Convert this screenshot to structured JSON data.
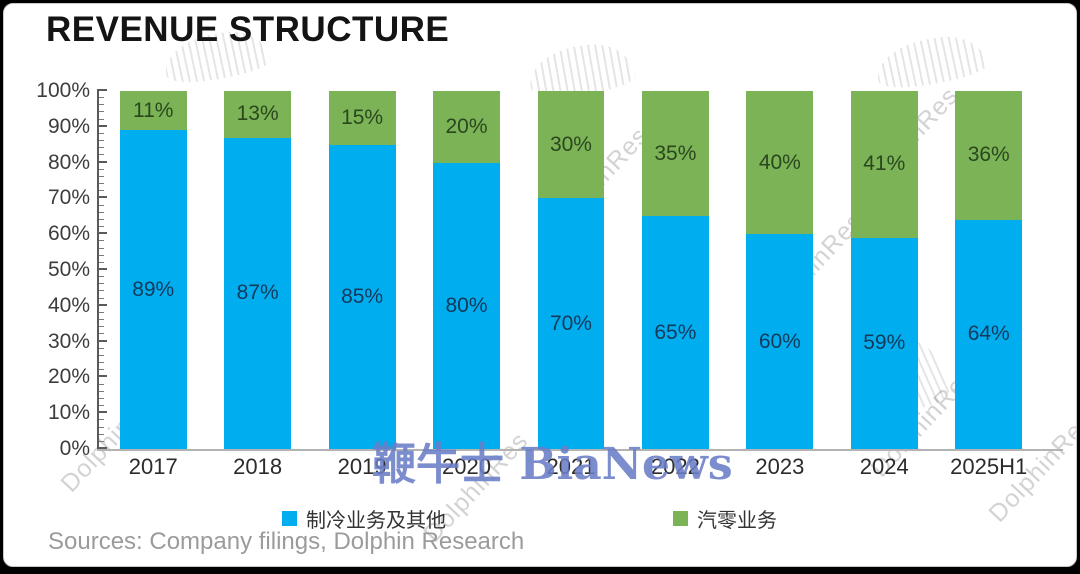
{
  "title": "REVENUE STRUCTURE",
  "source_note": "Sources: Company filings, Dolphin Research",
  "watermarks": {
    "center_text": "鞭牛士 BiaNews",
    "center_color": "#6a7dc6",
    "diagonal_text": "DolphinRes",
    "diagonal_text_full": "Dolphin Research"
  },
  "legend": {
    "items": [
      {
        "label": "制冷业务及其他",
        "color": "#00AEEF"
      },
      {
        "label": "汽零业务",
        "color": "#7CB357"
      }
    ]
  },
  "chart_data": {
    "type": "bar",
    "stacked": true,
    "title": "REVENUE STRUCTURE",
    "xlabel": "",
    "ylabel": "",
    "ylim": [
      0,
      100
    ],
    "grid": false,
    "legend_position": "bottom",
    "value_suffix": "%",
    "categories": [
      "2017",
      "2018",
      "2019",
      "2020",
      "2021",
      "2022",
      "2023",
      "2024",
      "2025H1"
    ],
    "y_ticks": [
      "0%",
      "10%",
      "20%",
      "30%",
      "40%",
      "50%",
      "60%",
      "70%",
      "80%",
      "90%",
      "100%"
    ],
    "series": [
      {
        "name": "制冷业务及其他",
        "color": "#00AEEF",
        "label_color": "#14395b",
        "values": [
          89,
          87,
          85,
          80,
          70,
          65,
          60,
          59,
          64
        ]
      },
      {
        "name": "汽零业务",
        "color": "#7CB357",
        "label_color": "#2a471e",
        "values": [
          11,
          13,
          15,
          20,
          30,
          35,
          40,
          41,
          36
        ]
      }
    ]
  }
}
